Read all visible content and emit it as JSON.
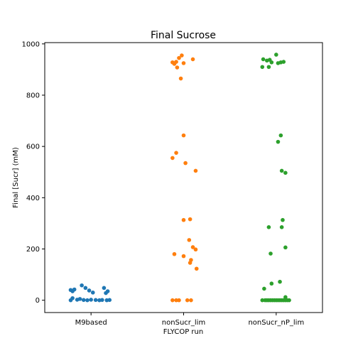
{
  "chart_data": {
    "type": "scatter",
    "title": "Final Sucrose",
    "xlabel": "FLYCOP run",
    "ylabel": "Final [Sucr] (mM)",
    "categories": [
      "M9based",
      "nonSucr_lim",
      "nonSucr_nP_lim"
    ],
    "ylim": [
      -48,
      1005
    ],
    "yticks": [
      0,
      200,
      400,
      600,
      800,
      1000
    ],
    "grid": false,
    "series": [
      {
        "category": "M9based",
        "color": "#1f77b4",
        "points": [
          {
            "x": -0.22,
            "y": 40
          },
          {
            "x": -0.2,
            "y": 35
          },
          {
            "x": -0.18,
            "y": 42
          },
          {
            "x": -0.1,
            "y": 58
          },
          {
            "x": -0.06,
            "y": 48
          },
          {
            "x": -0.02,
            "y": 38
          },
          {
            "x": 0.02,
            "y": 30
          },
          {
            "x": 0.14,
            "y": 48
          },
          {
            "x": 0.16,
            "y": 28
          },
          {
            "x": 0.18,
            "y": 35
          },
          {
            "x": -0.2,
            "y": 8
          },
          {
            "x": -0.15,
            "y": 2
          },
          {
            "x": -0.12,
            "y": 5
          },
          {
            "x": -0.08,
            "y": 1
          },
          {
            "x": -0.04,
            "y": 0
          },
          {
            "x": 0.0,
            "y": 2
          },
          {
            "x": 0.05,
            "y": 1
          },
          {
            "x": 0.09,
            "y": 0
          },
          {
            "x": 0.12,
            "y": 1
          },
          {
            "x": 0.17,
            "y": 0
          },
          {
            "x": -0.22,
            "y": 0
          },
          {
            "x": 0.2,
            "y": 1
          }
        ]
      },
      {
        "category": "nonSucr_lim",
        "color": "#ff7f0e",
        "points": [
          {
            "x": -0.12,
            "y": 928
          },
          {
            "x": -0.1,
            "y": 922
          },
          {
            "x": -0.08,
            "y": 930
          },
          {
            "x": -0.05,
            "y": 945
          },
          {
            "x": -0.02,
            "y": 955
          },
          {
            "x": 0.0,
            "y": 925
          },
          {
            "x": 0.1,
            "y": 940
          },
          {
            "x": -0.07,
            "y": 908
          },
          {
            "x": -0.03,
            "y": 865
          },
          {
            "x": 0.0,
            "y": 643
          },
          {
            "x": -0.08,
            "y": 575
          },
          {
            "x": -0.12,
            "y": 555
          },
          {
            "x": 0.02,
            "y": 535
          },
          {
            "x": 0.13,
            "y": 505
          },
          {
            "x": 0.0,
            "y": 313
          },
          {
            "x": 0.07,
            "y": 316
          },
          {
            "x": 0.06,
            "y": 235
          },
          {
            "x": 0.1,
            "y": 207
          },
          {
            "x": 0.13,
            "y": 198
          },
          {
            "x": -0.1,
            "y": 180
          },
          {
            "x": 0.0,
            "y": 172
          },
          {
            "x": 0.08,
            "y": 157
          },
          {
            "x": 0.07,
            "y": 146
          },
          {
            "x": 0.14,
            "y": 123
          },
          {
            "x": -0.12,
            "y": 0
          },
          {
            "x": -0.08,
            "y": 0
          },
          {
            "x": -0.05,
            "y": 0
          },
          {
            "x": 0.04,
            "y": 0
          },
          {
            "x": 0.08,
            "y": 0
          }
        ]
      },
      {
        "category": "nonSucr_nP_lim",
        "color": "#2ca02c",
        "points": [
          {
            "x": -0.14,
            "y": 940
          },
          {
            "x": -0.1,
            "y": 935
          },
          {
            "x": -0.07,
            "y": 938
          },
          {
            "x": -0.05,
            "y": 928
          },
          {
            "x": 0.0,
            "y": 958
          },
          {
            "x": 0.02,
            "y": 925
          },
          {
            "x": 0.05,
            "y": 928
          },
          {
            "x": 0.08,
            "y": 930
          },
          {
            "x": -0.15,
            "y": 910
          },
          {
            "x": -0.08,
            "y": 910
          },
          {
            "x": 0.05,
            "y": 643
          },
          {
            "x": 0.02,
            "y": 618
          },
          {
            "x": 0.06,
            "y": 505
          },
          {
            "x": 0.1,
            "y": 497
          },
          {
            "x": 0.07,
            "y": 313
          },
          {
            "x": -0.08,
            "y": 285
          },
          {
            "x": 0.06,
            "y": 285
          },
          {
            "x": 0.1,
            "y": 206
          },
          {
            "x": -0.06,
            "y": 182
          },
          {
            "x": 0.04,
            "y": 72
          },
          {
            "x": -0.05,
            "y": 65
          },
          {
            "x": -0.13,
            "y": 45
          },
          {
            "x": 0.1,
            "y": 12
          },
          {
            "x": -0.15,
            "y": 0
          },
          {
            "x": -0.12,
            "y": 0
          },
          {
            "x": -0.1,
            "y": 0
          },
          {
            "x": -0.08,
            "y": 0
          },
          {
            "x": -0.06,
            "y": 0
          },
          {
            "x": -0.04,
            "y": 0
          },
          {
            "x": -0.02,
            "y": 0
          },
          {
            "x": 0.0,
            "y": 0
          },
          {
            "x": 0.02,
            "y": 0
          },
          {
            "x": 0.04,
            "y": 0
          },
          {
            "x": 0.06,
            "y": 0
          },
          {
            "x": 0.08,
            "y": 0
          },
          {
            "x": 0.1,
            "y": 0
          },
          {
            "x": 0.12,
            "y": 0
          },
          {
            "x": 0.14,
            "y": 0
          }
        ]
      }
    ]
  }
}
